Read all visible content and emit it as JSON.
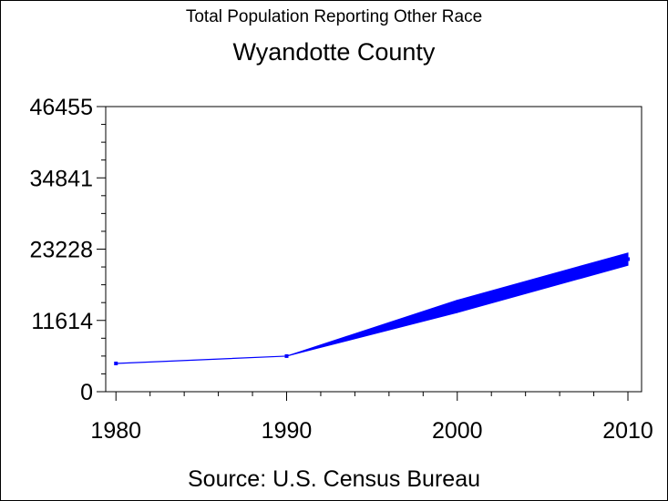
{
  "chart_data": {
    "type": "line",
    "title": "Total Population Reporting Other Race",
    "subtitle": "Wyandotte County",
    "footnote": "Source: U.S. Census Bureau",
    "x": [
      1980,
      1990,
      2000,
      2010
    ],
    "x_ticks": [
      "1980",
      "1990",
      "2000",
      "2010"
    ],
    "y_ticks": [
      "0",
      "11614",
      "23228",
      "34841",
      "46455"
    ],
    "ylim": [
      0,
      46455
    ],
    "xlim": [
      1979.4,
      2010.8
    ],
    "series": [
      {
        "values": [
          4600,
          5800,
          13900,
          21600
        ]
      }
    ],
    "band_2000": [
      12900,
      14900
    ],
    "band_2010": [
      20600,
      22600
    ],
    "grid": false,
    "legend": "none",
    "colors": {
      "line": "#0000ff",
      "axis": "#000000",
      "frame": "#000000"
    }
  }
}
